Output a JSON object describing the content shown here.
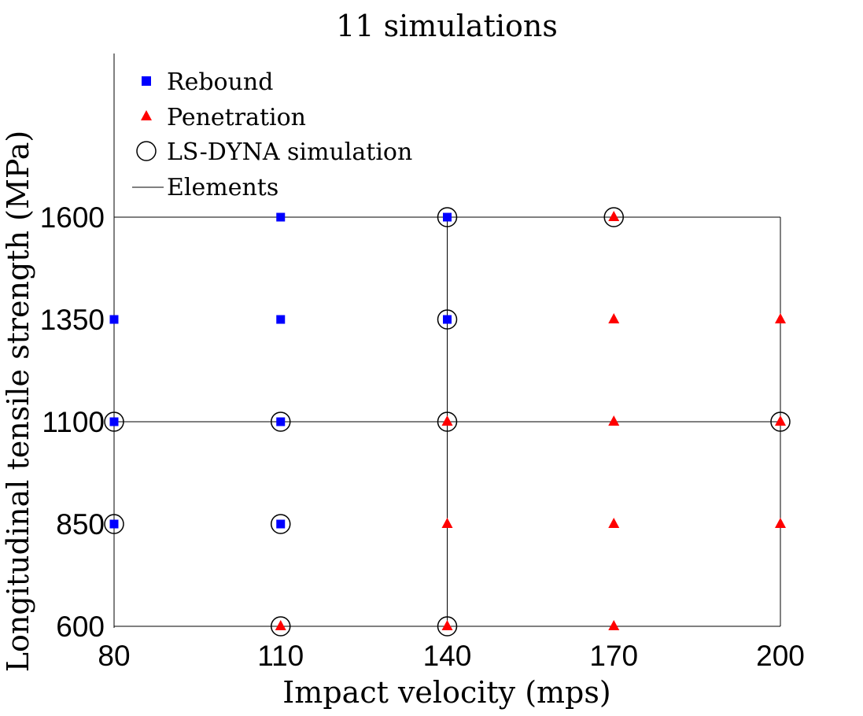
{
  "chart_data": {
    "type": "scatter",
    "title": "11 simulations",
    "xlabel": "Impact velocity (mps)",
    "ylabel": "Longitudinal tensile strength (MPa)",
    "xlim": [
      80,
      200
    ],
    "ylim": [
      600,
      1600
    ],
    "x_ticks": [
      "80",
      "110",
      "140",
      "170",
      "200"
    ],
    "y_ticks": [
      "600",
      "850",
      "1100",
      "1350",
      "1600"
    ],
    "legend_position": "top-left",
    "grid": false,
    "series": [
      {
        "name": "Rebound",
        "marker": "square",
        "color": "#0000ff",
        "points": [
          {
            "x": 80,
            "y": 850
          },
          {
            "x": 80,
            "y": 1100
          },
          {
            "x": 80,
            "y": 1350
          },
          {
            "x": 110,
            "y": 850
          },
          {
            "x": 110,
            "y": 1100
          },
          {
            "x": 110,
            "y": 1350
          },
          {
            "x": 110,
            "y": 1600
          },
          {
            "x": 140,
            "y": 1350
          },
          {
            "x": 140,
            "y": 1600
          }
        ]
      },
      {
        "name": "Penetration",
        "marker": "triangle",
        "color": "#ff0000",
        "points": [
          {
            "x": 110,
            "y": 600
          },
          {
            "x": 140,
            "y": 600
          },
          {
            "x": 140,
            "y": 850
          },
          {
            "x": 140,
            "y": 1100
          },
          {
            "x": 170,
            "y": 600
          },
          {
            "x": 170,
            "y": 850
          },
          {
            "x": 170,
            "y": 1100
          },
          {
            "x": 170,
            "y": 1350
          },
          {
            "x": 170,
            "y": 1600
          },
          {
            "x": 200,
            "y": 850
          },
          {
            "x": 200,
            "y": 1100
          },
          {
            "x": 200,
            "y": 1350
          }
        ]
      },
      {
        "name": "LS-DYNA simulation",
        "marker": "circle",
        "color": "#000000",
        "points": [
          {
            "x": 80,
            "y": 850
          },
          {
            "x": 80,
            "y": 1100
          },
          {
            "x": 110,
            "y": 600
          },
          {
            "x": 110,
            "y": 850
          },
          {
            "x": 110,
            "y": 1100
          },
          {
            "x": 140,
            "y": 600
          },
          {
            "x": 140,
            "y": 1100
          },
          {
            "x": 140,
            "y": 1350
          },
          {
            "x": 140,
            "y": 1600
          },
          {
            "x": 170,
            "y": 1600
          },
          {
            "x": 200,
            "y": 1100
          }
        ]
      },
      {
        "name": "Elements",
        "marker": "line",
        "color": "#000000",
        "segments": [
          {
            "x1": 80,
            "y1": 600,
            "x2": 200,
            "y2": 600
          },
          {
            "x1": 80,
            "y1": 1100,
            "x2": 200,
            "y2": 1100
          },
          {
            "x1": 80,
            "y1": 1600,
            "x2": 200,
            "y2": 1600
          },
          {
            "x1": 80,
            "y1": 600,
            "x2": 80,
            "y2": 1600
          },
          {
            "x1": 140,
            "y1": 600,
            "x2": 140,
            "y2": 1600
          },
          {
            "x1": 200,
            "y1": 600,
            "x2": 200,
            "y2": 1600
          }
        ]
      }
    ]
  }
}
